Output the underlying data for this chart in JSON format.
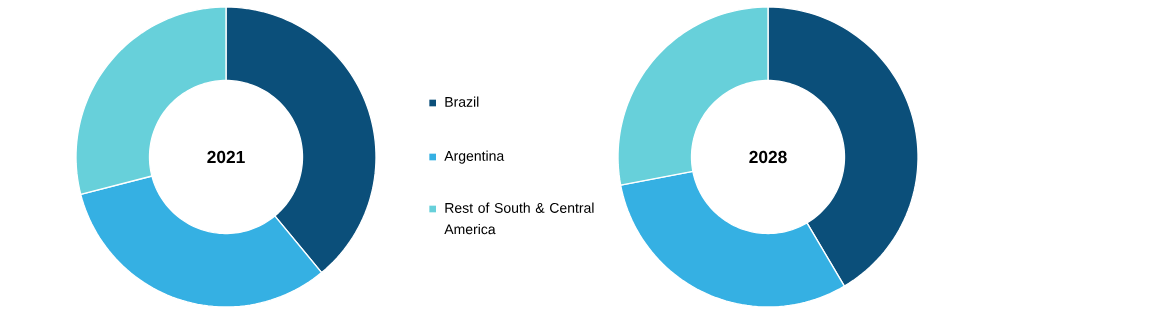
{
  "chart_data": [
    {
      "type": "donut",
      "title": "2021",
      "categories": [
        "Brazil",
        "Argentina",
        "Rest of South & Central America"
      ],
      "values": [
        39,
        32,
        29
      ],
      "colors": [
        "#0b4f7a",
        "#35b0e3",
        "#67d0da"
      ],
      "legend": "right"
    },
    {
      "type": "donut",
      "title": "2028",
      "categories": [
        null,
        null,
        null
      ],
      "values": [
        41.5,
        30.5,
        28
      ],
      "colors": [
        "#0b4f7a",
        "#35b0e3",
        "#67d0da"
      ]
    }
  ]
}
